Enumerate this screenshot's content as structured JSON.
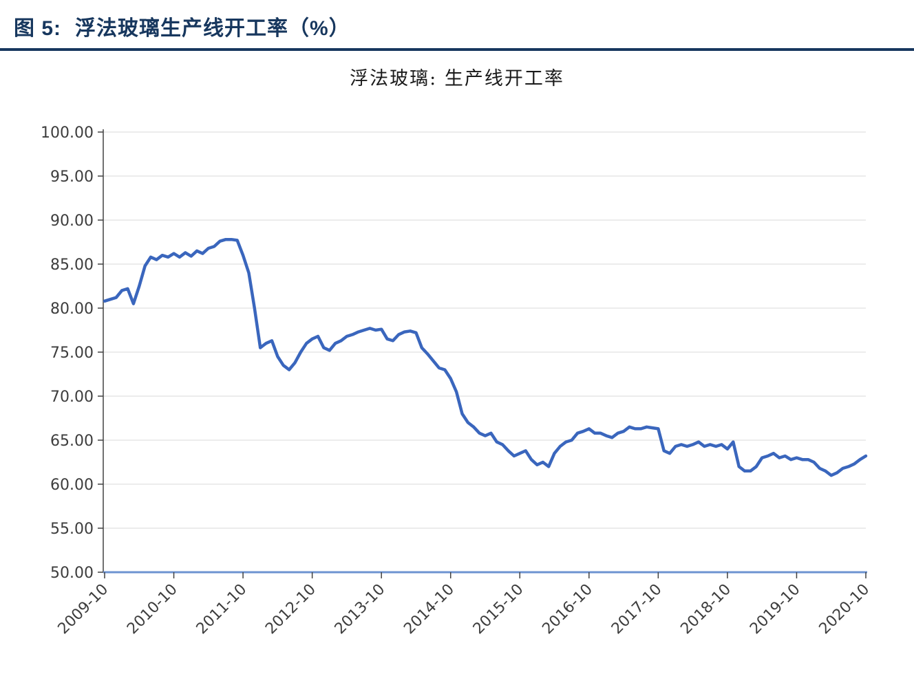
{
  "header": {
    "figure_label": "图 5:",
    "figure_title": "浮法玻璃生产线开工率（%）",
    "accent_color": "#17375E"
  },
  "chart_data": {
    "type": "line",
    "title": "浮法玻璃: 生产线开工率",
    "series": [
      {
        "name": "浮法玻璃: 生产线开工率",
        "values": [
          80.8,
          81.0,
          81.2,
          82.0,
          82.2,
          80.5,
          82.5,
          84.8,
          85.8,
          85.5,
          86.0,
          85.8,
          86.2,
          85.8,
          86.3,
          85.9,
          86.5,
          86.2,
          86.8,
          87.0,
          87.6,
          87.8,
          87.8,
          87.7,
          86.0,
          84.0,
          80.0,
          75.5,
          76.0,
          76.3,
          74.5,
          73.5,
          73.0,
          73.8,
          75.0,
          76.0,
          76.5,
          76.8,
          75.5,
          75.2,
          76.0,
          76.3,
          76.8,
          77.0,
          77.3,
          77.5,
          77.7,
          77.5,
          77.6,
          76.5,
          76.3,
          77.0,
          77.3,
          77.4,
          77.2,
          75.5,
          74.8,
          74.0,
          73.2,
          73.0,
          72.0,
          70.5,
          68.0,
          67.0,
          66.5,
          65.8,
          65.5,
          65.8,
          64.8,
          64.5,
          63.8,
          63.2,
          63.5,
          63.8,
          62.8,
          62.2,
          62.5,
          62.0,
          63.5,
          64.3,
          64.8,
          65.0,
          65.8,
          66.0,
          66.3,
          65.8,
          65.8,
          65.5,
          65.3,
          65.8,
          66.0,
          66.5,
          66.3,
          66.3,
          66.5,
          66.4,
          66.3,
          63.8,
          63.5,
          64.3,
          64.5,
          64.3,
          64.5,
          64.8,
          64.3,
          64.5,
          64.3,
          64.5,
          64.0,
          64.8,
          62.0,
          61.5,
          61.5,
          62.0,
          63.0,
          63.2,
          63.5,
          63.0,
          63.2,
          62.8,
          63.0,
          62.8,
          62.8,
          62.5,
          61.8,
          61.5,
          61.0,
          61.3,
          61.8,
          62.0,
          62.3,
          62.8,
          63.2
        ]
      }
    ],
    "x": [
      "2009-10",
      "2009-11",
      "2009-12",
      "2010-01",
      "2010-02",
      "2010-03",
      "2010-04",
      "2010-05",
      "2010-06",
      "2010-07",
      "2010-08",
      "2010-09",
      "2010-10",
      "2010-11",
      "2010-12",
      "2011-01",
      "2011-02",
      "2011-03",
      "2011-04",
      "2011-05",
      "2011-06",
      "2011-07",
      "2011-08",
      "2011-09",
      "2011-10",
      "2011-11",
      "2011-12",
      "2012-01",
      "2012-02",
      "2012-03",
      "2012-04",
      "2012-05",
      "2012-06",
      "2012-07",
      "2012-08",
      "2012-09",
      "2012-10",
      "2012-11",
      "2012-12",
      "2013-01",
      "2013-02",
      "2013-03",
      "2013-04",
      "2013-05",
      "2013-06",
      "2013-07",
      "2013-08",
      "2013-09",
      "2013-10",
      "2013-11",
      "2013-12",
      "2014-01",
      "2014-02",
      "2014-03",
      "2014-04",
      "2014-05",
      "2014-06",
      "2014-07",
      "2014-08",
      "2014-09",
      "2014-10",
      "2014-11",
      "2014-12",
      "2015-01",
      "2015-02",
      "2015-03",
      "2015-04",
      "2015-05",
      "2015-06",
      "2015-07",
      "2015-08",
      "2015-09",
      "2015-10",
      "2015-11",
      "2015-12",
      "2016-01",
      "2016-02",
      "2016-03",
      "2016-04",
      "2016-05",
      "2016-06",
      "2016-07",
      "2016-08",
      "2016-09",
      "2016-10",
      "2016-11",
      "2016-12",
      "2017-01",
      "2017-02",
      "2017-03",
      "2017-04",
      "2017-05",
      "2017-06",
      "2017-07",
      "2017-08",
      "2017-09",
      "2017-10",
      "2017-11",
      "2017-12",
      "2018-01",
      "2018-02",
      "2018-03",
      "2018-04",
      "2018-05",
      "2018-06",
      "2018-07",
      "2018-08",
      "2018-09",
      "2018-10",
      "2018-11",
      "2018-12",
      "2019-01",
      "2019-02",
      "2019-03",
      "2019-04",
      "2019-05",
      "2019-06",
      "2019-07",
      "2019-08",
      "2019-09",
      "2019-10",
      "2019-11",
      "2019-12",
      "2020-01",
      "2020-02",
      "2020-03",
      "2020-04",
      "2020-05",
      "2020-06",
      "2020-07",
      "2020-08",
      "2020-09",
      "2020-10"
    ],
    "xtick_labels": [
      "2009-10",
      "2010-10",
      "2011-10",
      "2012-10",
      "2013-10",
      "2014-10",
      "2015-10",
      "2016-10",
      "2017-10",
      "2018-10",
      "2019-10",
      "2020-10"
    ],
    "ytick_labels": [
      "100.00",
      "95.00",
      "90.00",
      "85.00",
      "80.00",
      "75.00",
      "70.00",
      "65.00",
      "60.00",
      "55.00",
      "50.00"
    ],
    "ylim": [
      50,
      100
    ],
    "ytick_step": 5,
    "grid": true,
    "legend": "none",
    "xlabel": "",
    "ylabel": "",
    "line_color": "#3a66bd",
    "bottom_axis_color": "#6d93d1",
    "yaxis_color": "#404040",
    "grid_color": "#d9d9d9"
  }
}
